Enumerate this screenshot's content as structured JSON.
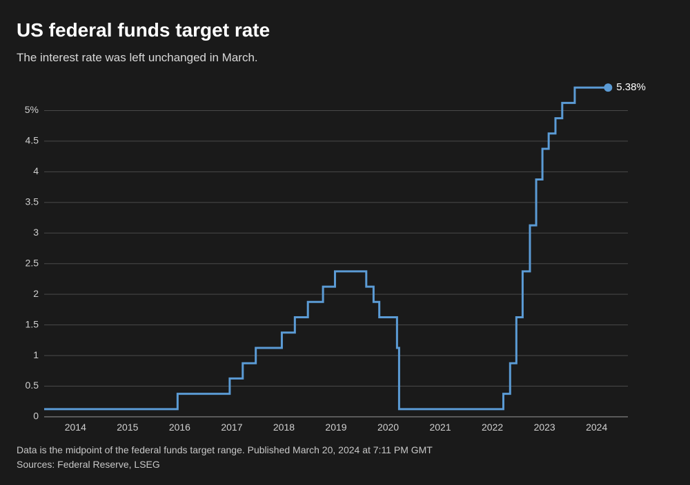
{
  "title": "US federal funds target rate",
  "subtitle": "The interest rate was left unchanged in March.",
  "footnote_line1": "Data is the midpoint of the federal funds target range. Published March 20, 2024 at 7:11 PM GMT",
  "footnote_line2": "Sources: Federal Reserve, LSEG",
  "chart": {
    "type": "step-line",
    "background_color": "#1a1a1a",
    "grid_color": "#4a4a4a",
    "baseline_color": "#9a9a9a",
    "text_color": "#d0d0d0",
    "line_color": "#5b9bd5",
    "line_width": 3,
    "endpoint_marker_color": "#5b9bd5",
    "endpoint_marker_radius": 6,
    "endpoint_label": "5.38%",
    "endpoint_label_color": "#ffffff",
    "x": {
      "min": 2013.4,
      "max": 2024.6,
      "ticks": [
        2014,
        2015,
        2016,
        2017,
        2018,
        2019,
        2020,
        2021,
        2022,
        2023,
        2024
      ],
      "tick_labels": [
        "2014",
        "2015",
        "2016",
        "2017",
        "2018",
        "2019",
        "2020",
        "2021",
        "2022",
        "2023",
        "2024"
      ],
      "label_fontsize": 14
    },
    "y": {
      "min": 0,
      "max": 5.5,
      "ticks": [
        0,
        0.5,
        1,
        1.5,
        2,
        2.5,
        3,
        3.5,
        4,
        4.5,
        5
      ],
      "tick_labels": [
        "0",
        "0.5",
        "1",
        "1.5",
        "2",
        "2.5",
        "3",
        "3.5",
        "4",
        "4.5",
        "5%"
      ],
      "label_fontsize": 14
    },
    "series": [
      {
        "x": 2013.4,
        "y": 0.125
      },
      {
        "x": 2015.96,
        "y": 0.125
      },
      {
        "x": 2015.96,
        "y": 0.375
      },
      {
        "x": 2016.96,
        "y": 0.375
      },
      {
        "x": 2016.96,
        "y": 0.625
      },
      {
        "x": 2017.21,
        "y": 0.625
      },
      {
        "x": 2017.21,
        "y": 0.875
      },
      {
        "x": 2017.46,
        "y": 0.875
      },
      {
        "x": 2017.46,
        "y": 1.125
      },
      {
        "x": 2017.96,
        "y": 1.125
      },
      {
        "x": 2017.96,
        "y": 1.375
      },
      {
        "x": 2018.21,
        "y": 1.375
      },
      {
        "x": 2018.21,
        "y": 1.625
      },
      {
        "x": 2018.46,
        "y": 1.625
      },
      {
        "x": 2018.46,
        "y": 1.875
      },
      {
        "x": 2018.75,
        "y": 1.875
      },
      {
        "x": 2018.75,
        "y": 2.125
      },
      {
        "x": 2018.98,
        "y": 2.125
      },
      {
        "x": 2018.98,
        "y": 2.375
      },
      {
        "x": 2019.58,
        "y": 2.375
      },
      {
        "x": 2019.58,
        "y": 2.125
      },
      {
        "x": 2019.72,
        "y": 2.125
      },
      {
        "x": 2019.72,
        "y": 1.875
      },
      {
        "x": 2019.83,
        "y": 1.875
      },
      {
        "x": 2019.83,
        "y": 1.625
      },
      {
        "x": 2020.17,
        "y": 1.625
      },
      {
        "x": 2020.17,
        "y": 1.125
      },
      {
        "x": 2020.21,
        "y": 1.125
      },
      {
        "x": 2020.21,
        "y": 0.125
      },
      {
        "x": 2022.21,
        "y": 0.125
      },
      {
        "x": 2022.21,
        "y": 0.375
      },
      {
        "x": 2022.34,
        "y": 0.375
      },
      {
        "x": 2022.34,
        "y": 0.875
      },
      {
        "x": 2022.46,
        "y": 0.875
      },
      {
        "x": 2022.46,
        "y": 1.625
      },
      {
        "x": 2022.58,
        "y": 1.625
      },
      {
        "x": 2022.58,
        "y": 2.375
      },
      {
        "x": 2022.72,
        "y": 2.375
      },
      {
        "x": 2022.72,
        "y": 3.125
      },
      {
        "x": 2022.84,
        "y": 3.125
      },
      {
        "x": 2022.84,
        "y": 3.875
      },
      {
        "x": 2022.96,
        "y": 3.875
      },
      {
        "x": 2022.96,
        "y": 4.375
      },
      {
        "x": 2023.08,
        "y": 4.375
      },
      {
        "x": 2023.08,
        "y": 4.625
      },
      {
        "x": 2023.21,
        "y": 4.625
      },
      {
        "x": 2023.21,
        "y": 4.875
      },
      {
        "x": 2023.34,
        "y": 4.875
      },
      {
        "x": 2023.34,
        "y": 5.125
      },
      {
        "x": 2023.58,
        "y": 5.125
      },
      {
        "x": 2023.58,
        "y": 5.375
      },
      {
        "x": 2024.22,
        "y": 5.375
      }
    ]
  }
}
